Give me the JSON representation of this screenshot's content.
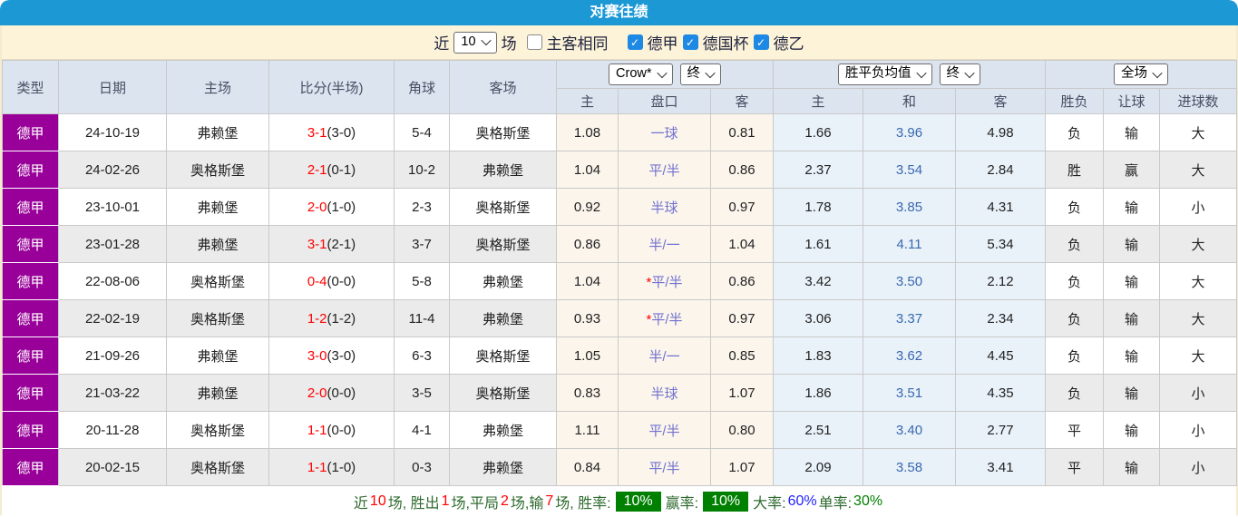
{
  "title": "对赛往绩",
  "colors": {
    "title_bar": "#1c99d5",
    "league_badge": "#990099",
    "filter_bar_bg": "#fcf3d8",
    "header_bg": "#dbe4ef",
    "odds_col_bg": "#fbf5ec",
    "avg_col_bg": "#e9f2f9",
    "win_red": "#f25555",
    "loss_green": "#3e7d3e",
    "draw_blue": "#5b5bdf",
    "score_red": "#ff0000",
    "rate_badge_green": "#008000",
    "rate_blue": "#2222ff"
  },
  "filter": {
    "near_label": "近",
    "games_select": "10",
    "games_label": "场",
    "same_venue_label": "主客相同",
    "same_venue_checked": false,
    "leagues": [
      {
        "label": "德甲",
        "checked": true
      },
      {
        "label": "德国杯",
        "checked": true
      },
      {
        "label": "德乙",
        "checked": true
      }
    ]
  },
  "table": {
    "columns": [
      "类型",
      "日期",
      "主场",
      "比分(半场)",
      "角球",
      "客场"
    ],
    "groups": {
      "odds": {
        "selects": [
          "Crow*",
          "终"
        ],
        "sub": [
          "主",
          "盘口",
          "客"
        ]
      },
      "avg": {
        "selects": [
          "胜平负均值",
          "终"
        ],
        "sub": [
          "主",
          "和",
          "客"
        ]
      },
      "result": {
        "selects": [
          "全场"
        ],
        "sub": [
          "胜负",
          "让球",
          "进球数"
        ]
      }
    },
    "rows": [
      {
        "league": "德甲",
        "date": "24-10-19",
        "home": {
          "t": "弗赖堡",
          "c": "black"
        },
        "score": "3-1",
        "half": "(3-0)",
        "corner": "5-4",
        "away": {
          "t": "奥格斯堡",
          "c": "green"
        },
        "odds_home": "1.08",
        "handicap": {
          "star": false,
          "t": "一球"
        },
        "odds_away": "0.81",
        "avg_home": "1.66",
        "avg_draw": "3.96",
        "avg_away": "4.98",
        "result": {
          "t": "负",
          "c": "green"
        },
        "let_result": {
          "t": "输",
          "c": "green"
        },
        "goals": {
          "t": "大",
          "c": "red"
        }
      },
      {
        "league": "德甲",
        "date": "24-02-26",
        "home": {
          "t": "奥格斯堡",
          "c": "green"
        },
        "score": "2-1",
        "half": "(0-1)",
        "corner": "10-2",
        "away": {
          "t": "弗赖堡",
          "c": "black"
        },
        "odds_home": "1.04",
        "handicap": {
          "star": false,
          "t": "平/半"
        },
        "odds_away": "0.86",
        "avg_home": "2.37",
        "avg_draw": "3.54",
        "avg_away": "2.84",
        "result": {
          "t": "胜",
          "c": "red"
        },
        "let_result": {
          "t": "赢",
          "c": "red"
        },
        "goals": {
          "t": "大",
          "c": "red"
        }
      },
      {
        "league": "德甲",
        "date": "23-10-01",
        "home": {
          "t": "弗赖堡",
          "c": "black"
        },
        "score": "2-0",
        "half": "(1-0)",
        "corner": "2-3",
        "away": {
          "t": "奥格斯堡",
          "c": "green"
        },
        "odds_home": "0.92",
        "handicap": {
          "star": false,
          "t": "半球"
        },
        "odds_away": "0.97",
        "avg_home": "1.78",
        "avg_draw": "3.85",
        "avg_away": "4.31",
        "result": {
          "t": "负",
          "c": "green"
        },
        "let_result": {
          "t": "输",
          "c": "green"
        },
        "goals": {
          "t": "小",
          "c": "green"
        }
      },
      {
        "league": "德甲",
        "date": "23-01-28",
        "home": {
          "t": "弗赖堡",
          "c": "black"
        },
        "score": "3-1",
        "half": "(2-1)",
        "corner": "3-7",
        "away": {
          "t": "奥格斯堡",
          "c": "green"
        },
        "odds_home": "0.86",
        "handicap": {
          "star": false,
          "t": "半/一"
        },
        "odds_away": "1.04",
        "avg_home": "1.61",
        "avg_draw": "4.11",
        "avg_away": "5.34",
        "result": {
          "t": "负",
          "c": "green"
        },
        "let_result": {
          "t": "输",
          "c": "green"
        },
        "goals": {
          "t": "大",
          "c": "red"
        }
      },
      {
        "league": "德甲",
        "date": "22-08-06",
        "home": {
          "t": "奥格斯堡",
          "c": "green"
        },
        "score": "0-4",
        "half": "(0-0)",
        "corner": "5-8",
        "away": {
          "t": "弗赖堡",
          "c": "black"
        },
        "odds_home": "1.04",
        "handicap": {
          "star": true,
          "t": "平/半"
        },
        "odds_away": "0.86",
        "avg_home": "3.42",
        "avg_draw": "3.50",
        "avg_away": "2.12",
        "result": {
          "t": "负",
          "c": "green"
        },
        "let_result": {
          "t": "输",
          "c": "green"
        },
        "goals": {
          "t": "大",
          "c": "red"
        }
      },
      {
        "league": "德甲",
        "date": "22-02-19",
        "home": {
          "t": "奥格斯堡",
          "c": "green"
        },
        "score": "1-2",
        "half": "(1-2)",
        "corner": "11-4",
        "away": {
          "t": "弗赖堡",
          "c": "black"
        },
        "odds_home": "0.93",
        "handicap": {
          "star": true,
          "t": "平/半"
        },
        "odds_away": "0.97",
        "avg_home": "3.06",
        "avg_draw": "3.37",
        "avg_away": "2.34",
        "result": {
          "t": "负",
          "c": "green"
        },
        "let_result": {
          "t": "输",
          "c": "green"
        },
        "goals": {
          "t": "大",
          "c": "red"
        }
      },
      {
        "league": "德甲",
        "date": "21-09-26",
        "home": {
          "t": "弗赖堡",
          "c": "black"
        },
        "score": "3-0",
        "half": "(3-0)",
        "corner": "6-3",
        "away": {
          "t": "奥格斯堡",
          "c": "green"
        },
        "odds_home": "1.05",
        "handicap": {
          "star": false,
          "t": "半/一"
        },
        "odds_away": "0.85",
        "avg_home": "1.83",
        "avg_draw": "3.62",
        "avg_away": "4.45",
        "result": {
          "t": "负",
          "c": "green"
        },
        "let_result": {
          "t": "输",
          "c": "green"
        },
        "goals": {
          "t": "大",
          "c": "red"
        }
      },
      {
        "league": "德甲",
        "date": "21-03-22",
        "home": {
          "t": "弗赖堡",
          "c": "black"
        },
        "score": "2-0",
        "half": "(0-0)",
        "corner": "3-5",
        "away": {
          "t": "奥格斯堡",
          "c": "green"
        },
        "odds_home": "0.83",
        "handicap": {
          "star": false,
          "t": "半球"
        },
        "odds_away": "1.07",
        "avg_home": "1.86",
        "avg_draw": "3.51",
        "avg_away": "4.35",
        "result": {
          "t": "负",
          "c": "green"
        },
        "let_result": {
          "t": "输",
          "c": "green"
        },
        "goals": {
          "t": "小",
          "c": "green"
        }
      },
      {
        "league": "德甲",
        "date": "20-11-28",
        "home": {
          "t": "奥格斯堡",
          "c": "green"
        },
        "score": "1-1",
        "half": "(0-0)",
        "corner": "4-1",
        "away": {
          "t": "弗赖堡",
          "c": "black"
        },
        "odds_home": "1.11",
        "handicap": {
          "star": false,
          "t": "平/半"
        },
        "odds_away": "0.80",
        "avg_home": "2.51",
        "avg_draw": "3.40",
        "avg_away": "2.77",
        "result": {
          "t": "平",
          "c": "blue"
        },
        "let_result": {
          "t": "输",
          "c": "green"
        },
        "goals": {
          "t": "小",
          "c": "green"
        }
      },
      {
        "league": "德甲",
        "date": "20-02-15",
        "home": {
          "t": "奥格斯堡",
          "c": "green"
        },
        "score": "1-1",
        "half": "(1-0)",
        "corner": "0-3",
        "away": {
          "t": "弗赖堡",
          "c": "black"
        },
        "odds_home": "0.84",
        "handicap": {
          "star": false,
          "t": "平/半"
        },
        "odds_away": "1.07",
        "avg_home": "2.09",
        "avg_draw": "3.58",
        "avg_away": "3.41",
        "result": {
          "t": "平",
          "c": "blue"
        },
        "let_result": {
          "t": "输",
          "c": "green"
        },
        "goals": {
          "t": "小",
          "c": "green"
        }
      }
    ]
  },
  "footer": {
    "parts": [
      {
        "t": "近 ",
        "s": "label"
      },
      {
        "t": "10",
        "s": "num"
      },
      {
        "t": " 场, 胜出 ",
        "s": "label"
      },
      {
        "t": "1",
        "s": "num"
      },
      {
        "t": " 场,平局 ",
        "s": "label"
      },
      {
        "t": "2",
        "s": "num"
      },
      {
        "t": " 场,输 ",
        "s": "label"
      },
      {
        "t": "7",
        "s": "num"
      },
      {
        "t": " 场, 胜率: ",
        "s": "label"
      },
      {
        "t": "10%",
        "s": "badge"
      },
      {
        "t": " 赢率: ",
        "s": "label"
      },
      {
        "t": "10%",
        "s": "badge"
      },
      {
        "t": " 大率: ",
        "s": "label"
      },
      {
        "t": "60%",
        "s": "blue"
      },
      {
        "t": " 单率: ",
        "s": "label"
      },
      {
        "t": "30%",
        "s": "green"
      }
    ]
  }
}
